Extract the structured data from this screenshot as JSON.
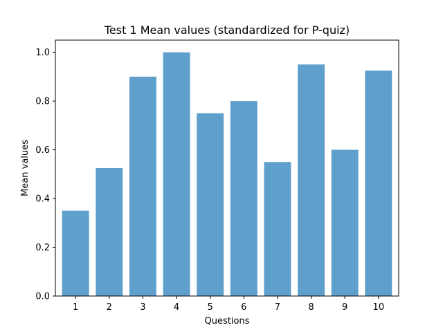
{
  "chart_data": {
    "type": "bar",
    "title": "Test 1 Mean values (standardized for P-quiz)",
    "xlabel": "Questions",
    "ylabel": "Mean values",
    "categories": [
      "1",
      "2",
      "3",
      "4",
      "5",
      "6",
      "7",
      "8",
      "9",
      "10"
    ],
    "values": [
      0.35,
      0.525,
      0.9,
      1.0,
      0.75,
      0.8,
      0.55,
      0.95,
      0.6,
      0.925
    ],
    "ylim": [
      0,
      1.05
    ],
    "yticks": [
      0.0,
      0.2,
      0.4,
      0.6,
      0.8,
      1.0
    ],
    "ytick_labels": [
      "0.0",
      "0.2",
      "0.4",
      "0.6",
      "0.8",
      "1.0"
    ],
    "bar_color": "#5f9fcc",
    "grid": false,
    "legend": "none"
  }
}
